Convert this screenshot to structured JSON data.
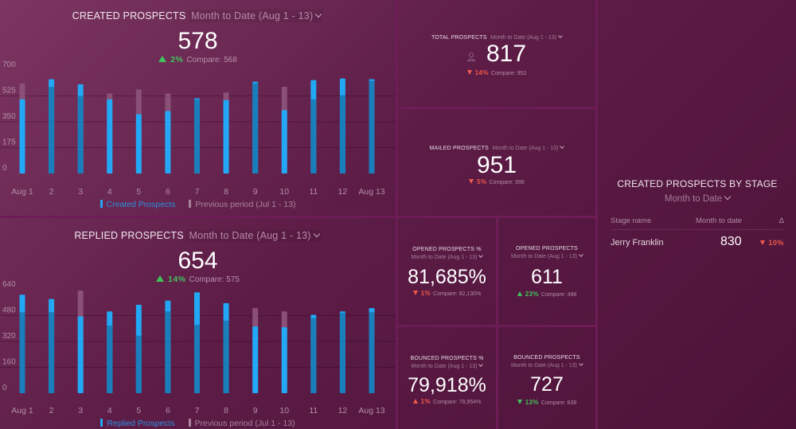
{
  "colors": {
    "current_bar": "#22a8f5",
    "current_overlap": "#1a7ebb",
    "previous_bar": "#8a5077",
    "up": "#41c25b",
    "down": "#ef5a4c",
    "divider": "#6e1c55"
  },
  "created": {
    "title": "CREATED PROSPECTS",
    "period": "Month to Date (Aug 1 - 13)",
    "value": "578",
    "delta_pct": "2%",
    "compare": "Compare: 568"
  },
  "replied": {
    "title": "REPLIED PROSPECTS",
    "period": "Month to Date (Aug 1 - 13)",
    "value": "654",
    "delta_pct": "14%",
    "compare": "Compare: 575"
  },
  "chart_data": [
    {
      "type": "bar",
      "title": "CREATED PROSPECTS",
      "categories": [
        "Aug 1",
        "2",
        "3",
        "4",
        "5",
        "6",
        "7",
        "8",
        "9",
        "10",
        "11",
        "12",
        "Aug 13"
      ],
      "yticks": [
        "0",
        "175",
        "350",
        "525",
        "700"
      ],
      "ylim": [
        0,
        700
      ],
      "grid": true,
      "legend_position": "bottom",
      "series": [
        {
          "name": "Created Prospects",
          "values": [
            502,
            638,
            604,
            502,
            401,
            423,
            508,
            497,
            621,
            429,
            632,
            643,
            638
          ]
        },
        {
          "name": "Previous period (Jul 1 - 13)",
          "values": [
            610,
            587,
            525,
            542,
            570,
            542,
            500,
            548,
            610,
            587,
            502,
            530,
            627
          ]
        }
      ]
    },
    {
      "type": "bar",
      "title": "REPLIED PROSPECTS",
      "categories": [
        "Aug 1",
        "2",
        "3",
        "4",
        "5",
        "6",
        "7",
        "8",
        "9",
        "10",
        "11",
        "12",
        "Aug 13"
      ],
      "yticks": [
        "0",
        "160",
        "320",
        "480",
        "640"
      ],
      "ylim": [
        0,
        640
      ],
      "grid": true,
      "legend_position": "bottom",
      "series": [
        {
          "name": "Replied Prospects",
          "values": [
            609,
            583,
            475,
            506,
            547,
            573,
            624,
            557,
            413,
            408,
            485,
            506,
            526
          ]
        },
        {
          "name": "Previous period (Jul 1 - 13)",
          "values": [
            501,
            501,
            635,
            418,
            356,
            506,
            423,
            449,
            526,
            506,
            464,
            496,
            501
          ]
        }
      ]
    }
  ],
  "kpis": {
    "total": {
      "title": "TOTAL PROSPECTS",
      "period": "Month to Date (Aug 1 - 13)",
      "value": "817",
      "delta_pct": "14%",
      "compare": "Compare: 952",
      "icon": "person-icon"
    },
    "mailed": {
      "title": "MAILED PROSPECTS",
      "period": "Month to Date (Aug 1 - 13)",
      "value": "951",
      "delta_pct": "5%",
      "compare": "Compare: 996"
    },
    "opened_pct": {
      "title": "OPENED PROSPECTS %",
      "period": "Month to Date (Aug 1 - 13)",
      "value": "81,685%",
      "delta_pct": "1%",
      "compare": "Compare: 82,130%"
    },
    "opened": {
      "title": "OPENED PROSPECTS",
      "period": "Month to Date (Aug 1 - 13)",
      "value": "611",
      "delta_pct": "23%",
      "compare": "Compare: 498"
    },
    "bounced_pct": {
      "title": "BOUNCED PROSPECTS %",
      "period": "Month to Date (Aug 1 - 13)",
      "value": "79,918%",
      "delta_pct": "1%",
      "compare": "Compare: 78,954%"
    },
    "bounced": {
      "title": "BOUNCED PROSPECTS",
      "period": "Month to Date (Aug 1 - 13)",
      "value": "727",
      "delta_pct": "13%",
      "compare": "Compare: 839"
    }
  },
  "stage": {
    "title": "CREATED PROSPECTS BY STAGE",
    "period": "Month to Date",
    "columns": [
      "Stage name",
      "Month to date",
      "Δ"
    ],
    "rows": [
      {
        "name": "Jerry Franklin",
        "value": "830",
        "delta": "10%"
      }
    ]
  }
}
